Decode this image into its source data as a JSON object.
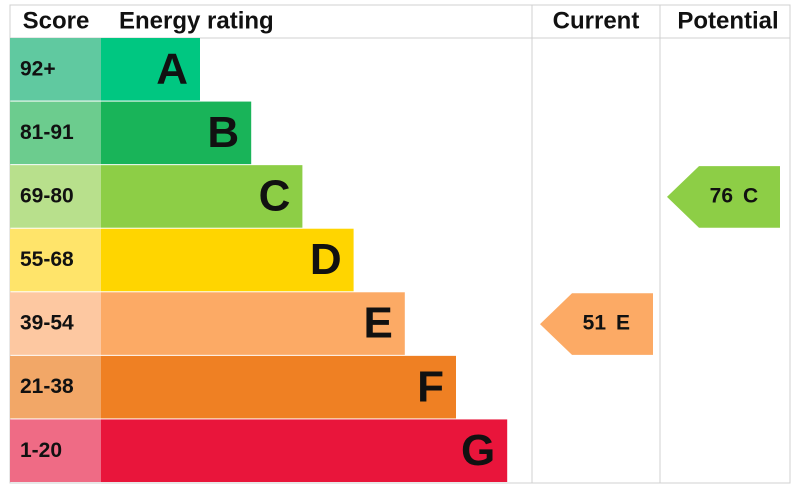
{
  "header": {
    "score": "Score",
    "rating": "Energy rating",
    "current": "Current",
    "potential": "Potential"
  },
  "bands": [
    {
      "score": "92+",
      "letter": "A",
      "color": "#00c781",
      "light": "#60c9a0"
    },
    {
      "score": "81-91",
      "letter": "B",
      "color": "#19b459",
      "light": "#6ccc8e"
    },
    {
      "score": "69-80",
      "letter": "C",
      "color": "#8dce46",
      "light": "#b8e08c"
    },
    {
      "score": "55-68",
      "letter": "D",
      "color": "#ffd500",
      "light": "#ffe46a"
    },
    {
      "score": "39-54",
      "letter": "E",
      "color": "#fcaa65",
      "light": "#fdc8a1"
    },
    {
      "score": "21-38",
      "letter": "F",
      "color": "#ef8023",
      "light": "#f2a767"
    },
    {
      "score": "1-20",
      "letter": "G",
      "color": "#e9153b",
      "light": "#ef6b85"
    }
  ],
  "current": {
    "score": 51,
    "letter": "E"
  },
  "potential": {
    "score": 76,
    "letter": "C"
  }
}
